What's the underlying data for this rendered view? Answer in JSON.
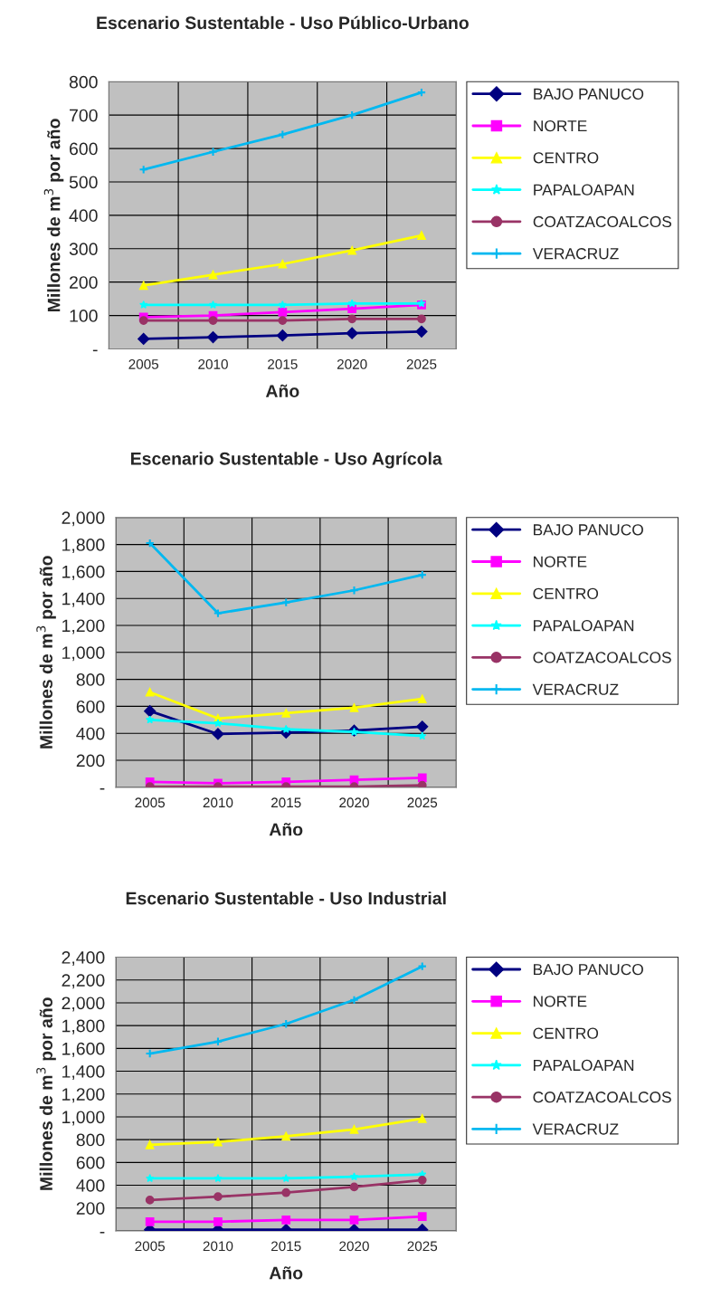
{
  "chart_data": [
    {
      "type": "line",
      "title": "Escenario Sustentable - Uso Público-Urbano",
      "xlabel": "Año",
      "ylabel": "Millones de m$^{3}$ por año",
      "categories": [
        "2005",
        "2010",
        "2015",
        "2020",
        "2025"
      ],
      "ylim": [
        0,
        800
      ],
      "yticks": [
        {
          "value": 0,
          "label": "-"
        },
        100,
        200,
        300,
        400,
        500,
        600,
        700,
        800
      ],
      "grid": true,
      "legend": "right",
      "series": [
        {
          "name": "BAJO PANUCO",
          "color": "#000080",
          "marker": "diamond",
          "values": [
            30,
            35,
            40,
            47,
            52
          ]
        },
        {
          "name": "NORTE",
          "color": "#ff00ff",
          "marker": "square",
          "values": [
            95,
            100,
            110,
            120,
            132
          ]
        },
        {
          "name": "CENTRO",
          "color": "#ffff00",
          "marker": "triangle",
          "values": [
            190,
            222,
            254,
            295,
            340
          ]
        },
        {
          "name": "PAPALOAPAN",
          "color": "#00ffff",
          "marker": "star",
          "values": [
            132,
            132,
            132,
            136,
            136
          ]
        },
        {
          "name": "COATZACOALCOS",
          "color": "#993366",
          "marker": "circle",
          "values": [
            85,
            85,
            85,
            90,
            90
          ]
        },
        {
          "name": "VERACRUZ",
          "color": "#00b8f0",
          "marker": "cross",
          "values": [
            537,
            590,
            642,
            700,
            768
          ]
        }
      ]
    },
    {
      "type": "line",
      "title": "Escenario Sustentable - Uso Agrícola",
      "xlabel": "Año",
      "ylabel": "Millones de m$^{3}$ por año",
      "categories": [
        "2005",
        "2010",
        "2015",
        "2020",
        "2025"
      ],
      "ylim": [
        0,
        2000
      ],
      "yticks": [
        {
          "value": 0,
          "label": "-"
        },
        200,
        400,
        600,
        800,
        {
          "value": 1000,
          "label": "1,000"
        },
        {
          "value": 1200,
          "label": "1,200"
        },
        {
          "value": 1400,
          "label": "1,400"
        },
        {
          "value": 1600,
          "label": "1,600"
        },
        {
          "value": 1800,
          "label": "1,800"
        },
        {
          "value": 2000,
          "label": "2,000"
        }
      ],
      "grid": true,
      "legend": "right",
      "series": [
        {
          "name": "BAJO PANUCO",
          "color": "#000080",
          "marker": "diamond",
          "values": [
            565,
            395,
            405,
            420,
            450
          ]
        },
        {
          "name": "NORTE",
          "color": "#ff00ff",
          "marker": "square",
          "values": [
            40,
            30,
            40,
            55,
            70
          ]
        },
        {
          "name": "CENTRO",
          "color": "#ffff00",
          "marker": "triangle",
          "values": [
            705,
            510,
            550,
            590,
            655
          ]
        },
        {
          "name": "PAPALOAPAN",
          "color": "#00ffff",
          "marker": "star",
          "values": [
            500,
            475,
            430,
            410,
            380
          ]
        },
        {
          "name": "COATZACOALCOS",
          "color": "#993366",
          "marker": "circle",
          "values": [
            5,
            5,
            5,
            5,
            15
          ]
        },
        {
          "name": "VERACRUZ",
          "color": "#00b8f0",
          "marker": "cross",
          "values": [
            1810,
            1290,
            1370,
            1460,
            1575
          ]
        }
      ]
    },
    {
      "type": "line",
      "title": "Escenario Sustentable - Uso Industrial",
      "xlabel": "Año",
      "ylabel": "Millones de m$^{3}$ por año",
      "categories": [
        "2005",
        "2010",
        "2015",
        "2020",
        "2025"
      ],
      "ylim": [
        0,
        2400
      ],
      "yticks": [
        {
          "value": 0,
          "label": "-"
        },
        200,
        400,
        600,
        800,
        {
          "value": 1000,
          "label": "1,000"
        },
        {
          "value": 1200,
          "label": "1,200"
        },
        {
          "value": 1400,
          "label": "1,400"
        },
        {
          "value": 1600,
          "label": "1,600"
        },
        {
          "value": 1800,
          "label": "1,800"
        },
        {
          "value": 2000,
          "label": "2,000"
        },
        {
          "value": 2200,
          "label": "2,200"
        },
        {
          "value": 2400,
          "label": "2,400"
        }
      ],
      "grid": true,
      "legend": "right",
      "series": [
        {
          "name": "BAJO PANUCO",
          "color": "#000080",
          "marker": "diamond",
          "values": [
            10,
            10,
            10,
            10,
            10
          ]
        },
        {
          "name": "NORTE",
          "color": "#ff00ff",
          "marker": "square",
          "values": [
            80,
            80,
            95,
            95,
            125
          ]
        },
        {
          "name": "CENTRO",
          "color": "#ffff00",
          "marker": "triangle",
          "values": [
            755,
            780,
            830,
            890,
            985
          ]
        },
        {
          "name": "PAPALOAPAN",
          "color": "#00ffff",
          "marker": "star",
          "values": [
            460,
            460,
            460,
            475,
            495
          ]
        },
        {
          "name": "COATZACOALCOS",
          "color": "#993366",
          "marker": "circle",
          "values": [
            270,
            300,
            335,
            385,
            445
          ]
        },
        {
          "name": "VERACRUZ",
          "color": "#00b8f0",
          "marker": "cross",
          "values": [
            1555,
            1660,
            1815,
            2025,
            2320
          ]
        }
      ]
    }
  ]
}
